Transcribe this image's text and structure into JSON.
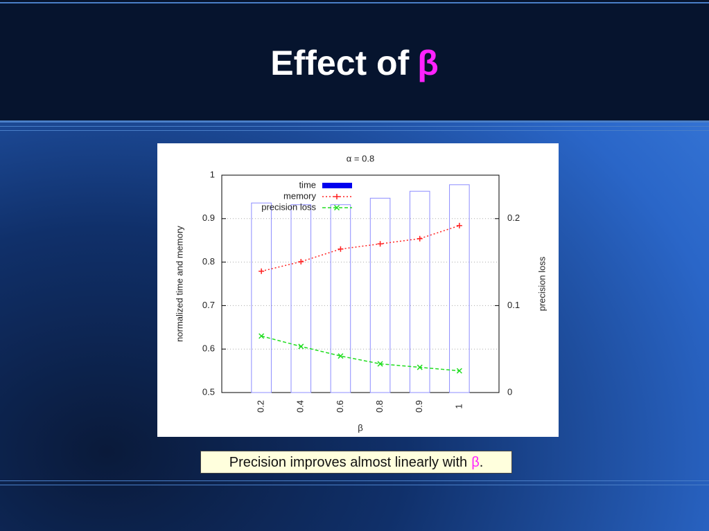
{
  "title": {
    "text": "Effect of",
    "symbol": "β"
  },
  "caption": {
    "text": "Precision improves almost linearly with",
    "symbol": "β",
    "end": "."
  },
  "chart_data": {
    "type": "bar",
    "title": "α = 0.8",
    "x_label": "β",
    "y_label": "normalized time and memory",
    "y2_label": "precision loss",
    "categories": [
      "0.2",
      "0.4",
      "0.6",
      "0.8",
      "0.9",
      "1"
    ],
    "ylim": [
      0.5,
      1
    ],
    "yticks": [
      0.5,
      0.6,
      0.7,
      0.8,
      0.9,
      1
    ],
    "y2lim": [
      0,
      0.25
    ],
    "y2ticks": [
      0,
      0.1,
      0.2
    ],
    "grid": true,
    "legend": "upper-left",
    "series": [
      {
        "name": "time",
        "type": "bar",
        "color": "#0000ee",
        "values": [
          0.936,
          0.932,
          0.932,
          0.947,
          0.963,
          0.978
        ]
      },
      {
        "name": "memory",
        "type": "line",
        "color": "#ff2020",
        "linestyle": "dotted",
        "marker": "+",
        "values": [
          0.779,
          0.801,
          0.83,
          0.842,
          0.854,
          0.884
        ]
      },
      {
        "name": "precision loss",
        "type": "line",
        "color": "#20dd20",
        "linestyle": "dashed",
        "marker": "x",
        "axis": "y2",
        "values": [
          0.065,
          0.053,
          0.042,
          0.033,
          0.029,
          0.025
        ]
      }
    ]
  }
}
